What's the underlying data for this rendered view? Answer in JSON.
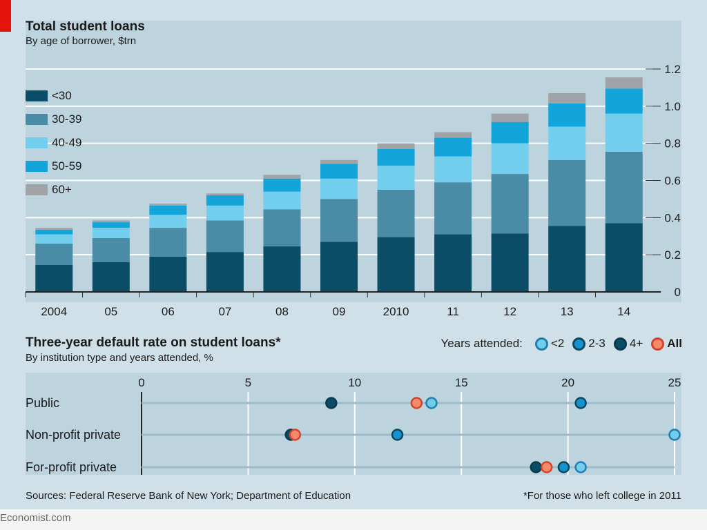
{
  "branding": {
    "site": "Economist.com",
    "accent": "#e3120b"
  },
  "chart_data": [
    {
      "type": "bar",
      "stacked": true,
      "title": "Total student loans",
      "subtitle": "By age of borrower, $trn",
      "categories": [
        "2004",
        "05",
        "06",
        "07",
        "08",
        "09",
        "2010",
        "11",
        "12",
        "13",
        "14"
      ],
      "series": [
        {
          "name": "<30",
          "color": "#0b4d66",
          "values": [
            0.145,
            0.16,
            0.19,
            0.215,
            0.245,
            0.27,
            0.295,
            0.31,
            0.315,
            0.355,
            0.37
          ]
        },
        {
          "name": "30-39",
          "color": "#4a8ba6",
          "values": [
            0.115,
            0.13,
            0.155,
            0.17,
            0.2,
            0.23,
            0.255,
            0.28,
            0.32,
            0.355,
            0.385
          ]
        },
        {
          "name": "40-49",
          "color": "#72d0ee",
          "values": [
            0.05,
            0.055,
            0.07,
            0.08,
            0.095,
            0.11,
            0.13,
            0.14,
            0.165,
            0.18,
            0.205
          ]
        },
        {
          "name": "50-59",
          "color": "#13a4d9",
          "values": [
            0.025,
            0.03,
            0.05,
            0.055,
            0.07,
            0.08,
            0.09,
            0.1,
            0.115,
            0.125,
            0.135
          ]
        },
        {
          "name": "60+",
          "color": "#a0a4a8",
          "values": [
            0.01,
            0.01,
            0.01,
            0.01,
            0.02,
            0.02,
            0.03,
            0.03,
            0.045,
            0.055,
            0.06
          ]
        }
      ],
      "ylim": [
        0,
        1.2
      ],
      "yticks": [
        "0",
        "0.2",
        "0.4",
        "0.6",
        "0.8",
        "1.0",
        "1.2"
      ],
      "xlabel": "",
      "ylabel": "",
      "legend_position": "top-left",
      "grid": true
    },
    {
      "type": "scatter",
      "title": "Three-year default rate on student loans*",
      "subtitle": "By institution type and years attended, %",
      "categories": [
        "Public",
        "Non-profit private",
        "For-profit private"
      ],
      "xlim": [
        0,
        25
      ],
      "xticks": [
        "0",
        "5",
        "10",
        "15",
        "20",
        "25"
      ],
      "legend_title": "Years attended:",
      "series": [
        {
          "name": "<2",
          "fill": "#72cdea",
          "stroke": "#1e7fb0",
          "values": [
            13.6,
            25.0,
            20.6
          ]
        },
        {
          "name": "2-3",
          "fill": "#1593d0",
          "stroke": "#0b4860",
          "values": [
            20.6,
            12.0,
            19.8
          ]
        },
        {
          "name": "4+",
          "fill": "#0b4d66",
          "stroke": "#083a4e",
          "values": [
            8.9,
            7.0,
            18.5
          ]
        },
        {
          "name": "All",
          "fill": "#f4896b",
          "stroke": "#d6432a",
          "values": [
            12.9,
            7.2,
            19.0
          ]
        }
      ],
      "legend_position": "top-right"
    }
  ],
  "footer": {
    "sources": "Sources: Federal Reserve Bank of New York; Department of Education",
    "note": "*For those who left college in 2011"
  }
}
